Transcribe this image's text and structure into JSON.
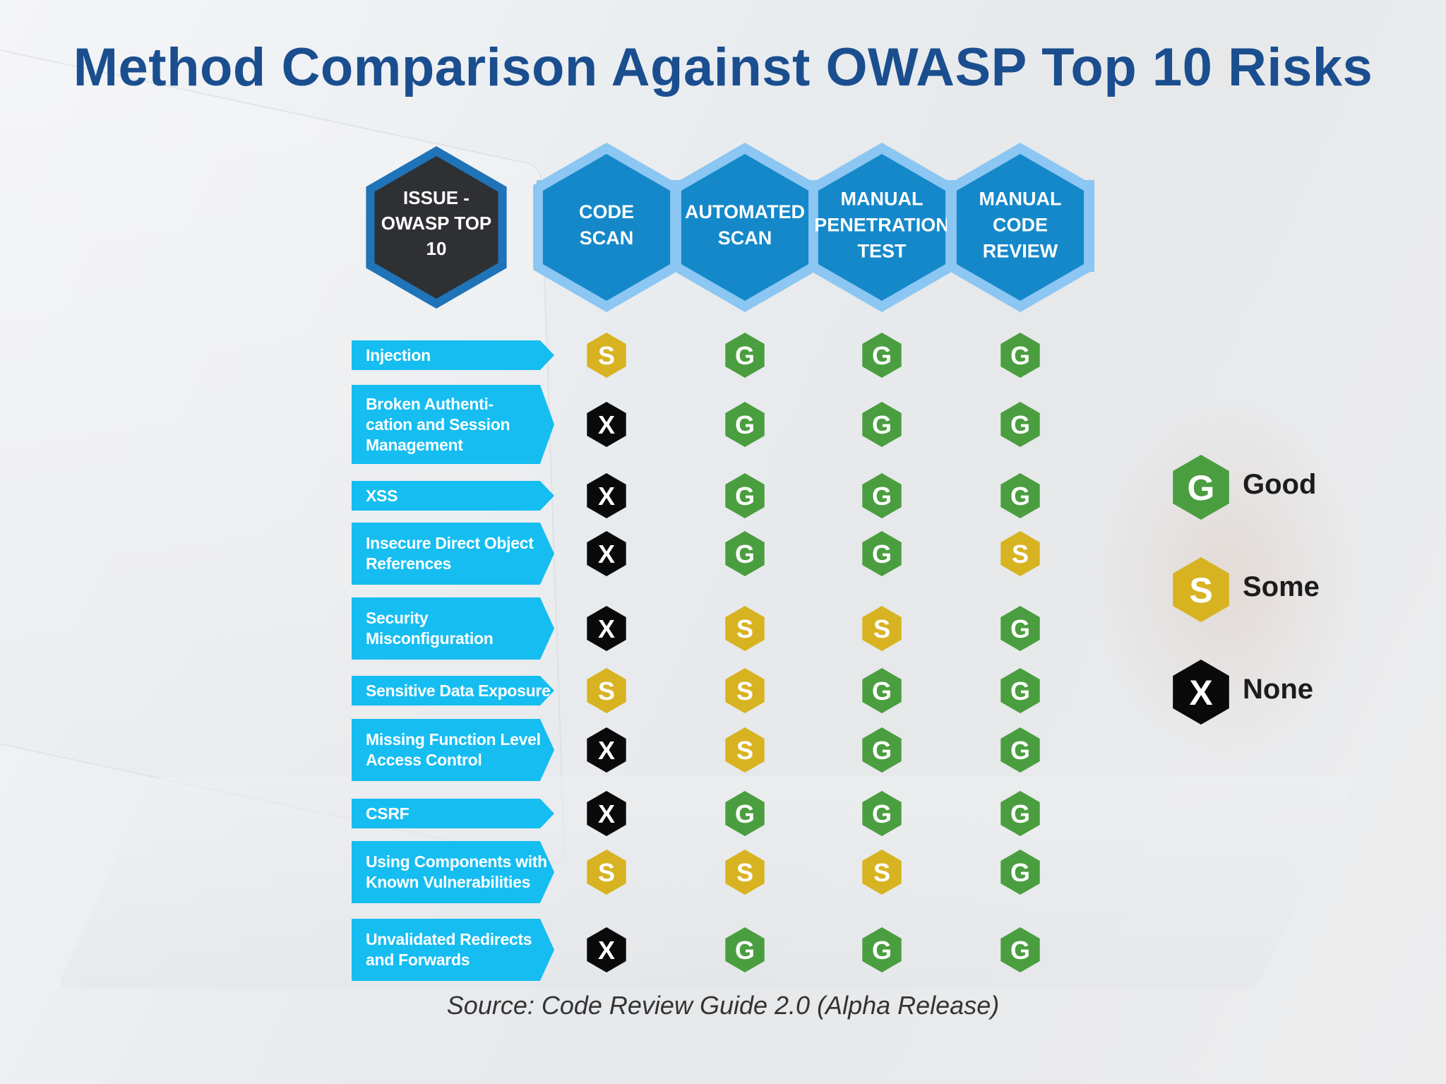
{
  "title": "Method Comparison Against OWASP Top 10 Risks",
  "chart_data": {
    "type": "table",
    "header_corner": [
      "ISSUE -",
      "OWASP TOP",
      "10"
    ],
    "columns": [
      {
        "key": "code_scan",
        "lines": [
          "CODE",
          "SCAN"
        ]
      },
      {
        "key": "automated_scan",
        "lines": [
          "AUTOMATED",
          "SCAN"
        ]
      },
      {
        "key": "manual_pen_test",
        "lines": [
          "MANUAL",
          "PENETRATION",
          "TEST"
        ]
      },
      {
        "key": "manual_code_review",
        "lines": [
          "MANUAL",
          "CODE",
          "REVIEW"
        ]
      }
    ],
    "rows": [
      {
        "label": "Injection",
        "ratings": [
          "S",
          "G",
          "G",
          "G"
        ]
      },
      {
        "label": "Broken Authenti-\ncation and Session\nManagement",
        "ratings": [
          "X",
          "G",
          "G",
          "G"
        ]
      },
      {
        "label": "XSS",
        "ratings": [
          "X",
          "G",
          "G",
          "G"
        ]
      },
      {
        "label": "Insecure Direct Object\nReferences",
        "ratings": [
          "X",
          "G",
          "G",
          "S"
        ]
      },
      {
        "label": "Security\nMisconfiguration",
        "ratings": [
          "X",
          "S",
          "S",
          "G"
        ]
      },
      {
        "label": "Sensitive Data Exposure",
        "ratings": [
          "S",
          "S",
          "G",
          "G"
        ]
      },
      {
        "label": "Missing Function Level\nAccess Control",
        "ratings": [
          "X",
          "S",
          "G",
          "G"
        ]
      },
      {
        "label": "CSRF",
        "ratings": [
          "X",
          "G",
          "G",
          "G"
        ]
      },
      {
        "label": "Using Components with\nKnown Vulnerabilities",
        "ratings": [
          "S",
          "S",
          "S",
          "G"
        ]
      },
      {
        "label": "Unvalidated Redirects\nand Forwards",
        "ratings": [
          "X",
          "G",
          "G",
          "G"
        ]
      }
    ],
    "legend": [
      {
        "symbol": "G",
        "label": "Good"
      },
      {
        "symbol": "S",
        "label": "Some"
      },
      {
        "symbol": "X",
        "label": "None"
      }
    ]
  },
  "colors": {
    "G": "#4a9e3f",
    "S": "#d8b321",
    "X": "#0a0a0a",
    "header_fill": "#1588c9",
    "header_border": "#8cc6f2",
    "corner_fill": "#2f3033",
    "corner_border": "#1f73b8",
    "row_label": "#15bdf1"
  },
  "source": "Source: Code Review Guide 2.0 (Alpha Release)"
}
